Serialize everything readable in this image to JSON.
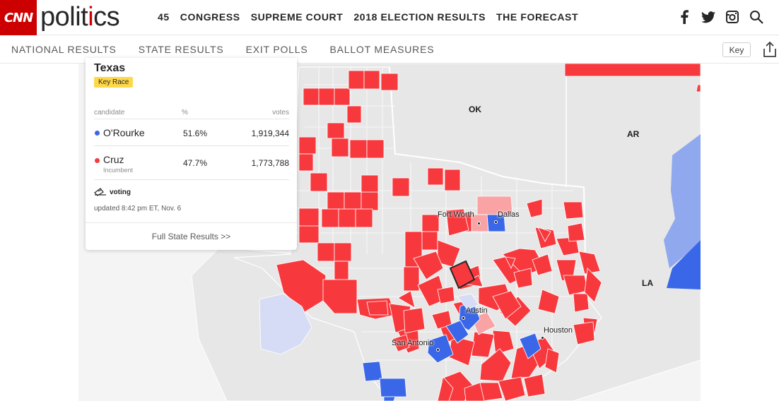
{
  "brand": {
    "logo": "CNN",
    "section": "politics",
    "section_i": "i"
  },
  "main_nav": [
    "45",
    "CONGRESS",
    "SUPREME COURT",
    "2018 ELECTION RESULTS",
    "THE FORECAST"
  ],
  "social_icons": [
    "facebook-icon",
    "twitter-icon",
    "instagram-icon",
    "search-icon"
  ],
  "sub_nav": [
    "NATIONAL RESULTS",
    "STATE RESULTS",
    "EXIT POLLS",
    "BALLOT MEASURES"
  ],
  "key_label": "Key",
  "panel": {
    "state": "Texas",
    "badge": "Key Race",
    "headers": {
      "candidate": "candidate",
      "pct": "%",
      "votes": "votes"
    },
    "candidates": [
      {
        "name": "O'Rourke",
        "sub": "",
        "pct": "51.6%",
        "votes": "1,919,344",
        "color": "#3a67e8"
      },
      {
        "name": "Cruz",
        "sub": "Incumbent",
        "pct": "47.7%",
        "votes": "1,773,788",
        "color": "#f7393e"
      }
    ],
    "status": "voting",
    "updated": "updated 8:42 pm ET, Nov. 6",
    "full_link": "Full State Results >>"
  },
  "map": {
    "states": {
      "ok": "OK",
      "ar": "AR",
      "la": "LA"
    },
    "cities": {
      "fort_worth": "Fort Worth",
      "dallas": "Dallas",
      "austin": "Austin",
      "san_antonio": "San Antonio",
      "houston": "Houston"
    },
    "colors": {
      "rep": "#f7393e",
      "rep_light": "#f9a3a5",
      "dem": "#3a67e8",
      "dem_light": "#d6dcf5",
      "neutral": "#e7e7e7",
      "land": "#f5f4f4"
    }
  }
}
